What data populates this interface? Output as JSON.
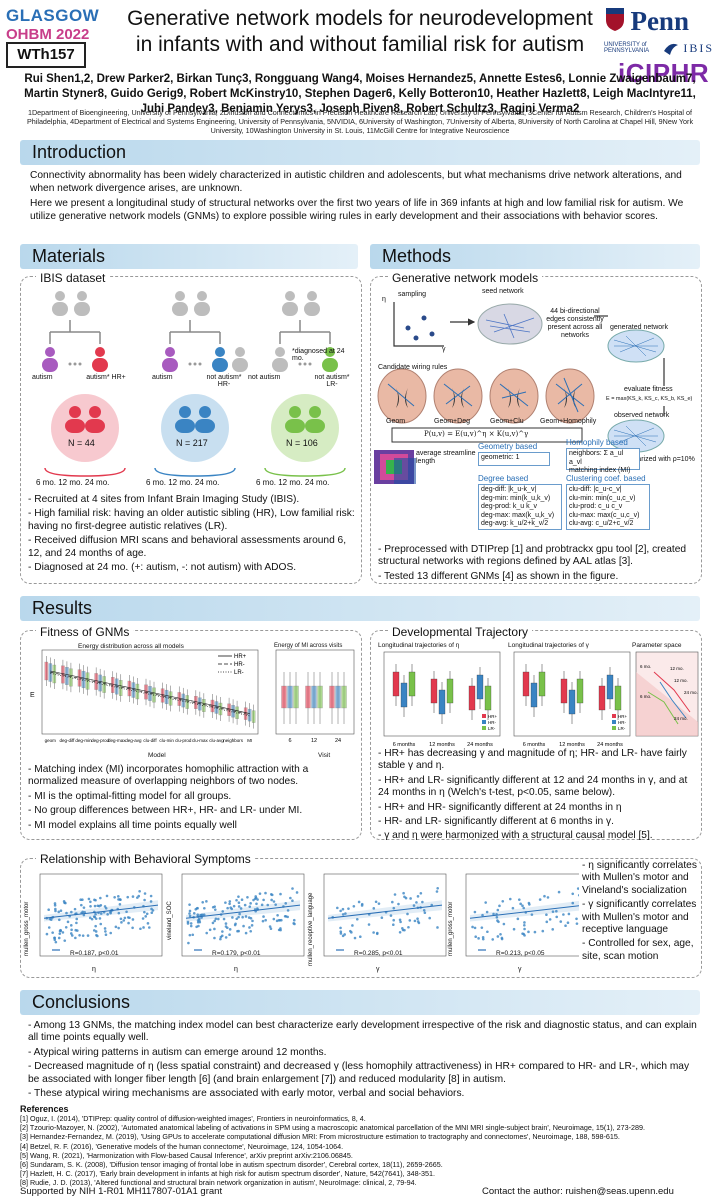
{
  "header": {
    "conf_name": "GLASGOW",
    "conf_sub": "OHBM 2022",
    "poster_id": "WTh157",
    "title": "Generative network models for neurodevelopment in infants with and without familial risk for autism",
    "penn": "Penn",
    "penn_sub": "UNIVERSITY of PENNSYLVANIA",
    "ibis": "IBIS",
    "iciphr": "iCIPHR",
    "authors": "Rui Shen1,2, Drew Parker2, Birkan Tunç3, Rongguang Wang4, Moises Hernandez5, Annette Estes6, Lonnie Zwaigenbaum7, Martin Styner8, Guido Gerig9, Robert McKinstry10, Stephen Dager6, Kelly Botteron10, Heather Hazlett8, Leigh MacIntyre11, Juhi Pandey3, Benjamin Yerys3, Joseph Piven8, Robert Schultz3, Ragini Verma2",
    "affiliations": "1Department of Bioengineering, University of Pennsylvania, 2Diffusion and Connectomics in Precision Healthcare Research Lab, University of Pennsylvania, 3Center for Autism Research, Children's Hospital of Philadelphia, 4Department of Electrical and Systems Engineering, University of Pennsylvania, 5NVIDIA, 6University of Washington, 7University of Alberta, 8University of North Carolina at Chapel Hill, 9New York University, 10Washington University in St. Louis, 11McGill Centre for Integrative Neuroscience"
  },
  "introduction": {
    "heading": "Introduction",
    "p1": "Connectivity abnormality has been widely characterized in autistic children and adolescents, but what mechanisms drive network alterations, and when network divergence arises, are unknown.",
    "p2": "Here we present a longitudinal study of structural networks over the first two years of life in 369 infants at high and low familial risk for autism. We utilize generative network models (GNMs) to explore possible wiring rules in early development and their associations with behavior scores."
  },
  "materials": {
    "heading": "Materials",
    "sub": "IBIS dataset",
    "labels": [
      "autism",
      "autism* HR+",
      "autism",
      "not autism* HR-",
      "not autism",
      "not autism* LR-"
    ],
    "diag_note": "*diagnosed at 24 mo.",
    "groups": [
      {
        "n": "N = 44",
        "color": "#e2394e",
        "bg": "#f7c9cf"
      },
      {
        "n": "N = 217",
        "color": "#3a84c3",
        "bg": "#c8dff0"
      },
      {
        "n": "N = 106",
        "color": "#79c14a",
        "bg": "#d6ecc3"
      }
    ],
    "timepoints": "6 mo.  12 mo.  24 mo.",
    "bullets": [
      "- Recruited at 4 sites from Infant Brain Imaging Study (IBIS).",
      "- High familial risk: having an older autistic sibling (HR), Low familial risk: having no first-degree autistic relatives (LR).",
      "- Received diffusion MRI scans and behavioral assessments around 6, 12, and 24 months of age.",
      "- Diagnosed at 24 mo. (+: autism, -: not autism) with ADOS."
    ]
  },
  "methods": {
    "heading": "Methods",
    "sub": "Generative network models",
    "sampling": "sampling",
    "seed": "seed network",
    "edges_note": "44 bi-directional edges consistently present across all networks",
    "generated": "generated network",
    "candidate": "Candidate wiring rules",
    "rules": [
      "Geom",
      "Geom+Deg",
      "Geom+Clu",
      "Geom+Homophily"
    ],
    "formula": "P(u,v) = E(u,v)^η × K(u,v)^γ",
    "evaluate": "evaluate fitness",
    "ks": "E = max(KS_k, KS_c, KS_b, KS_e)",
    "observed": "observed network",
    "binarized": "Binarized with ρ=10%",
    "streamline": "average streamline length",
    "geom_based": "Geometry based",
    "geom_text": "geometric: 1",
    "homophily_based": "Homophily based",
    "homophily_text": "neighbors: Σ a_ul a_vl\nmatching index (MI)",
    "degree_based": "Degree based",
    "degree_rows": [
      "deg-diff: |k_u-k_v|",
      "deg-min: min(k_u,k_v)",
      "deg-prod: k_u k_v",
      "deg-max: max(k_u,k_v)",
      "deg-avg: k_u/2+k_v/2"
    ],
    "clustering_based": "Clustering coef. based",
    "clustering_rows": [
      "clu-diff: |c_u-c_v|",
      "clu-min: min(c_u,c_v)",
      "clu-prod: c_u c_v",
      "clu-max: max(c_u,c_v)",
      "clu-avg: c_u/2+c_v/2"
    ],
    "bullets": [
      "- Preprocessed with DTIPrep [1] and probtrackx gpu tool [2], created structural networks with regions defined by AAL atlas [3].",
      "- Tested 13 different GNMs [4] as shown in the figure."
    ]
  },
  "results": {
    "heading": "Results",
    "fitness": {
      "sub": "Fitness of GNMs",
      "plot_title": "Energy distribution across all models",
      "visit_title": "Energy of MI across visits",
      "legend": [
        "HR+",
        "HR-",
        "LR-"
      ],
      "ylabel": "E",
      "xlabel": "Model",
      "visit_xlabel": "Visit",
      "models": [
        "geom",
        "deg-diff",
        "deg-min",
        "deg-prod",
        "deg-max",
        "deg-avg",
        "clu-diff",
        "clu-min",
        "clu-prod",
        "clu-max",
        "clu-avg",
        "neighbors",
        "MI"
      ],
      "visits": [
        "6",
        "12",
        "24"
      ],
      "bullets": [
        "- Matching index (MI) incorporates homophilic attraction with a normalized measure of overlapping neighbors of two nodes.",
        "- MI is the optimal-fitting model for all groups.",
        "- No group differences between HR+, HR- and LR- under MI.",
        "- MI model explains all time points equally well"
      ]
    },
    "dev": {
      "sub": "Developmental Trajectory",
      "eta_title": "Longitudinal trajectories of η",
      "gamma_title": "Longitudinal trajectories of γ",
      "param_title": "Parameter space",
      "months": [
        "6 months",
        "12 months",
        "24 months"
      ],
      "legend": [
        "HR+",
        "HR-",
        "LR-"
      ],
      "param_labels": [
        "6 mo.",
        "12 mo.",
        "12 mo.",
        "24 mo.",
        "6 mo.",
        "24 mo."
      ],
      "bullets": [
        "- HR+ has decreasing γ and magnitude of η; HR- and LR- have fairly stable γ and η.",
        "- HR+ and LR- significantly different at 12 and 24 months in γ, and at 24 months in η (Welch's t-test, p<0.05, same below).",
        "- HR+ and HR- significantly different at 24 months in η",
        "- HR- and LR- significantly different at 6 months in γ.",
        "- γ and η were harmonized with a structural causal model [5]."
      ]
    },
    "behavior": {
      "sub": "Relationship with Behavioral Symptoms",
      "plots": [
        {
          "ylabel": "mullen_gross_motor",
          "xlabel": "η",
          "stat": "R=0.187, p<0.01"
        },
        {
          "ylabel": "vineland_SOC",
          "xlabel": "η",
          "stat": "R=0.179, p<0.01"
        },
        {
          "ylabel": "mullen_receptive_language",
          "xlabel": "γ",
          "stat": "R=0.285, p<0.01"
        },
        {
          "ylabel": "mullen_gross_motor",
          "xlabel": "γ",
          "stat": "R=0.213, p<0.05"
        }
      ],
      "bullets": [
        "- η significantly correlates with Mullen's motor and Vineland's socialization",
        "- γ significantly correlates with Mullen's motor and receptive language",
        "- Controlled for sex, age, site, scan motion"
      ]
    }
  },
  "conclusions": {
    "heading": "Conclusions",
    "bullets": [
      "- Among 13 GNMs, the matching index model can best characterize early development irrespective of the risk and diagnostic status, and can explain all time points equally well.",
      "- Atypical wiring patterns in autism can emerge around 12 months.",
      "- Decreased magnitude of η (less spatial constraint) and decreased γ (less homophily attractiveness) in HR+ compared to HR- and LR-, which may be associated with longer fiber length [6] (and brain enlargement [7]) and reduced modularity [8] in autism.",
      "- These atypical wiring mechanisms are associated with early motor, verbal and social behaviors."
    ]
  },
  "references": {
    "heading": "References",
    "items": [
      "[1] Oguz, I. (2014), 'DTIPrep: quality control of diffusion-weighted images', Frontiers in neuroinformatics, 8, 4.",
      "[2] Tzourio-Mazoyer, N. (2002), 'Automated anatomical labeling of activations in SPM using a macroscopic anatomical parcellation of the MNI MRI single-subject brain', Neuroimage, 15(1), 273-289.",
      "[3] Hernandez-Fernandez, M. (2019), 'Using GPUs to accelerate computational diffusion MRI: From microstructure estimation to tractography and connectomes', Neuroimage, 188, 598-615.",
      "[4] Betzel, R. F. (2016), 'Generative models of the human connectome', Neuroimage, 124, 1054-1064.",
      "[5] Wang, R. (2021), 'Harmonization with Flow-based Causal Inference', arXiv preprint arXiv:2106.06845.",
      "[6] Sundaram, S. K. (2008), 'Diffusion tensor imaging of frontal lobe in autism spectrum disorder', Cerebral cortex, 18(11), 2659-2665.",
      "[7] Hazlett, H. C. (2017), 'Early brain development in infants at high risk for autism spectrum disorder', Nature, 542(7641), 348-351.",
      "[8] Rudie, J. D. (2013), 'Altered functional and structural brain network organization in autism', NeuroImage: clinical, 2, 79-94."
    ]
  },
  "footer": {
    "support": "Supported by NIH 1-R01 MH117807-01A1 grant",
    "contact": "Contact the author: ruishen@seas.upenn.edu"
  }
}
